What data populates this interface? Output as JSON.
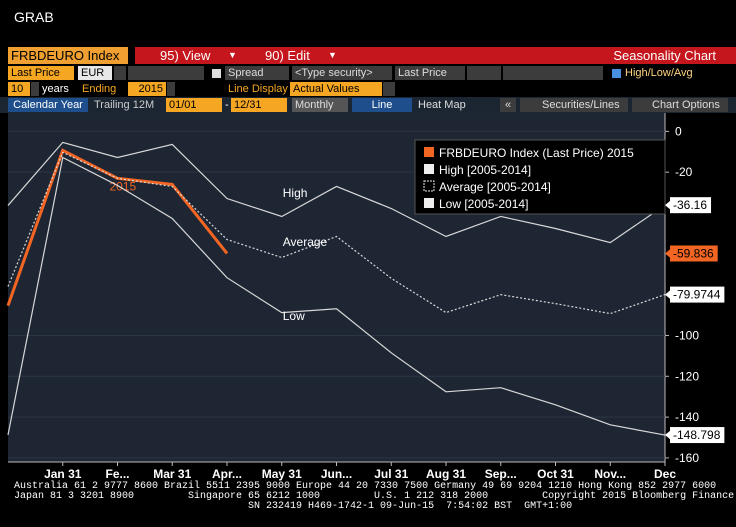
{
  "window_title": "GRAB",
  "toolbar": {
    "ticker": "FRBDEURO Index",
    "view": "95) View",
    "edit": "90) Edit",
    "chart_name": "Seasonality Chart",
    "field": "Last Price",
    "currency": "EUR",
    "spread": "Spread",
    "security": "<Type security>",
    "field2": "Last Price",
    "hla": "High/Low/Avg",
    "years": "10",
    "years_label": "years",
    "ending_label": "Ending",
    "ending": "2015",
    "line_display": "Line Display",
    "display_value": "Actual Values",
    "calendar": "Calendar Year",
    "trailing": "Trailing 12M",
    "from": "01/01",
    "dash": "-",
    "to": "12/31",
    "period": "Monthly",
    "line": "Line",
    "heatmap": "Heat Map",
    "collapse": "«",
    "securities": "Securities/Lines",
    "options": "Chart Options"
  },
  "chart_data": {
    "type": "line",
    "categories": [
      null,
      "Jan 31",
      "Fe...",
      "Mar 31",
      "Apr...",
      "May 31",
      "Jun...",
      "Jul 31",
      "Aug 31",
      "Sep...",
      "Oct 31",
      "Nov...",
      "Dec"
    ],
    "ylim": [
      -162,
      9
    ],
    "yticks": [
      0,
      -20,
      -100,
      -120,
      -140,
      -160
    ],
    "series": [
      {
        "name": "FRBDEURO Index (Last Price) 2015",
        "label": "2015",
        "color": "#f26522",
        "values": [
          -85.4,
          -9.3,
          -23,
          -26,
          -59.836,
          null,
          null,
          null,
          null,
          null,
          null,
          null,
          null
        ]
      },
      {
        "name": "High [2005-2014]",
        "label": "High",
        "color": "#d8d8d8",
        "values": [
          -36.3,
          -5.4,
          -12.8,
          -6.4,
          -32.9,
          -41.7,
          -27,
          -37.8,
          -51.5,
          -41.7,
          -47.6,
          -54.5,
          -36.16
        ]
      },
      {
        "name": "Average [2005-2014]",
        "label": "Average",
        "color": "#d8d8d8",
        "dash": true,
        "values": [
          -76,
          -10.3,
          -23,
          -27,
          -53,
          -61.8,
          -51.5,
          -72,
          -88.8,
          -80,
          -84.4,
          -89.3,
          -79.9744
        ]
      },
      {
        "name": "Low [2005-2014]",
        "label": "Low",
        "color": "#d8d8d8",
        "values": [
          -148.7,
          -12.8,
          -26.5,
          -42.7,
          -71.7,
          -88.8,
          -86.9,
          -108.5,
          -127.6,
          -125.6,
          -134,
          -143.8,
          -148.798
        ]
      }
    ]
  },
  "footer": [
    "Australia 61 2 9777 8600 Brazil 5511 2395 9000 Europe 44 20 7330 7500 Germany 49 69 9204 1210 Hong Kong 852 2977 6000",
    "Japan 81 3 3201 8900         Singapore 65 6212 1000         U.S. 1 212 318 2000         Copyright 2015 Bloomberg Finance L.P.",
    "                                       SN 232419 H469-1742-1 09-Jun-15  7:54:02 BST  GMT+1:00"
  ]
}
